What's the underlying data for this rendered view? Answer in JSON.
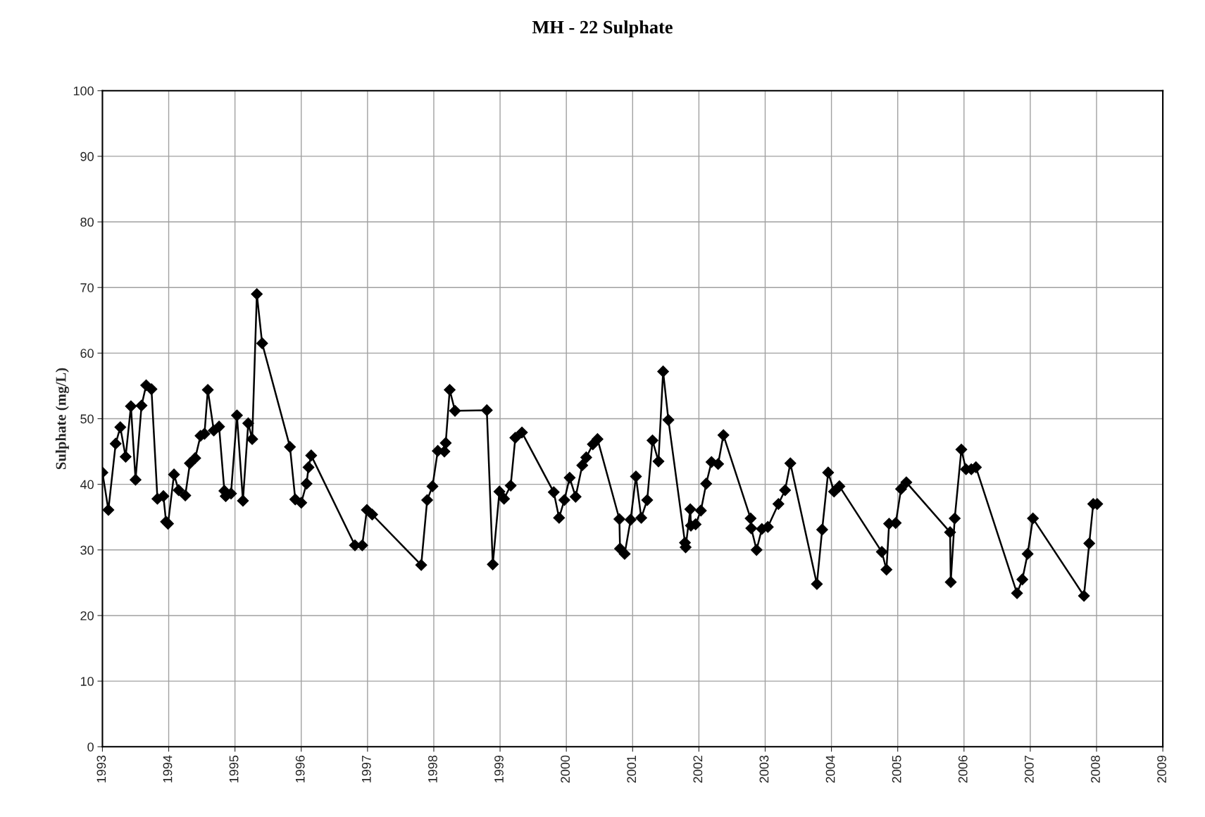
{
  "chart_data": {
    "type": "line",
    "title": "MH - 22 Sulphate",
    "ylabel": "Sulphate (mg/L)",
    "x": [
      1993.0,
      1993.09,
      1993.2,
      1993.27,
      1993.35,
      1993.43,
      1993.5,
      1993.59,
      1993.66,
      1993.74,
      1993.83,
      1993.92,
      1993.96,
      1993.99,
      1994.08,
      1994.15,
      1994.25,
      1994.32,
      1994.4,
      1994.48,
      1994.54,
      1994.59,
      1994.68,
      1994.76,
      1994.84,
      1994.86,
      1994.94,
      1995.03,
      1995.12,
      1995.2,
      1995.26,
      1995.33,
      1995.41,
      1995.83,
      1995.91,
      1996.0,
      1996.08,
      1996.11,
      1996.15,
      1996.81,
      1996.92,
      1996.99,
      1997.07,
      1997.81,
      1997.9,
      1997.98,
      1998.06,
      1998.16,
      1998.18,
      1998.24,
      1998.32,
      1998.8,
      1998.89,
      1998.99,
      1999.06,
      1999.16,
      1999.23,
      1999.33,
      1999.81,
      1999.89,
      1999.97,
      2000.05,
      2000.14,
      2000.24,
      2000.3,
      2000.4,
      2000.47,
      2000.8,
      2000.81,
      2000.88,
      2000.97,
      2001.05,
      2001.13,
      2001.22,
      2001.3,
      2001.39,
      2001.46,
      2001.54,
      2001.79,
      2001.8,
      2001.87,
      2001.88,
      2001.95,
      2002.03,
      2002.11,
      2002.19,
      2002.29,
      2002.37,
      2002.78,
      2002.79,
      2002.87,
      2002.95,
      2003.04,
      2003.2,
      2003.3,
      2003.38,
      2003.78,
      2003.86,
      2003.95,
      2004.04,
      2004.12,
      2004.76,
      2004.83,
      2004.87,
      2004.97,
      2005.05,
      2005.13,
      2005.79,
      2005.8,
      2005.86,
      2005.96,
      2006.03,
      2006.11,
      2006.18,
      2006.8,
      2006.88,
      2006.96,
      2007.04,
      2007.81,
      2007.89,
      2007.95,
      2008.01
    ],
    "series": [
      {
        "color": "#000000",
        "values": [
          41.8,
          36.1,
          46.2,
          48.7,
          44.2,
          51.9,
          40.7,
          52.0,
          55.1,
          54.5,
          37.8,
          38.2,
          34.3,
          34.0,
          41.5,
          39.1,
          38.3,
          43.2,
          44.0,
          47.4,
          47.7,
          54.4,
          48.2,
          48.8,
          39.0,
          38.2,
          38.6,
          50.5,
          37.5,
          49.3,
          46.9,
          69.0,
          61.5,
          45.7,
          37.7,
          37.2,
          40.1,
          42.6,
          44.4,
          30.7,
          30.7,
          36.1,
          35.4,
          27.7,
          37.6,
          39.7,
          45.1,
          45.0,
          46.3,
          54.4,
          51.2,
          51.3,
          27.8,
          38.9,
          37.8,
          39.8,
          47.1,
          47.9,
          38.8,
          34.9,
          37.6,
          41.0,
          38.1,
          42.9,
          44.1,
          46.1,
          46.9,
          34.7,
          30.2,
          29.4,
          34.6,
          41.2,
          34.9,
          37.6,
          46.7,
          43.5,
          57.2,
          49.8,
          31.1,
          30.4,
          36.2,
          33.7,
          33.9,
          36.0,
          40.1,
          43.4,
          43.1,
          47.5,
          34.8,
          33.3,
          30.0,
          33.2,
          33.5,
          37.0,
          39.1,
          43.2,
          24.8,
          33.1,
          41.8,
          38.9,
          39.7,
          29.7,
          27.0,
          34.0,
          34.1,
          39.3,
          40.3,
          32.7,
          25.1,
          34.8,
          45.3,
          42.3,
          42.3,
          42.6,
          23.4,
          25.5,
          29.4,
          34.8,
          23.0,
          31.0,
          37.0,
          37.0
        ]
      }
    ],
    "xlim": [
      1993,
      2009
    ],
    "xticks": [
      1993,
      1994,
      1995,
      1996,
      1997,
      1998,
      1999,
      2000,
      2001,
      2002,
      2003,
      2004,
      2005,
      2006,
      2007,
      2008,
      2009
    ],
    "ylim": [
      0,
      100
    ],
    "yticks": [
      0,
      10,
      20,
      30,
      40,
      50,
      60,
      70,
      80,
      90,
      100
    ],
    "grid": true,
    "marker": "diamond",
    "line_style": "solid"
  }
}
